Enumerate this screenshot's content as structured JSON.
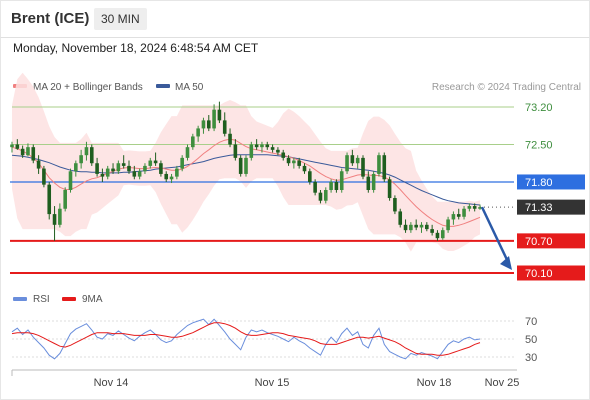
{
  "header": {
    "title": "Brent (ICE)",
    "timeframe": "30 MIN",
    "timestamp": "Monday, November 18, 2024 6:48:54 AM CET"
  },
  "legend": {
    "ma20": "MA 20 + Bollinger Bands",
    "ma50": "MA 50",
    "credit": "Research © 2024 Trading Central",
    "rsi": "RSI",
    "ma9": "9MA"
  },
  "colors": {
    "ma20": "#f08080",
    "bollinger_fill": "#fde0e0",
    "ma50": "#3a5a9a",
    "candle_up": "#3e8e3e",
    "candle_down": "#1f5e1f",
    "target_line": "#a8cf8a",
    "resistance_label": "#2e6fe0",
    "support_line": "#e51b1b",
    "last_price_bg": "#333333",
    "forecast_arrow": "#2b5aa8",
    "rsi_line": "#6a8edc",
    "rsi_ma": "#e51b1b"
  },
  "chart_data": [
    {
      "type": "candlestick",
      "title": "Brent (ICE)",
      "timeframe": "30 MIN",
      "ylim": [
        69.9,
        73.4
      ],
      "x_ticks": [
        "Nov 14",
        "Nov 15",
        "Nov 18",
        "Nov 25"
      ],
      "price_levels": [
        {
          "value": 73.2,
          "label": "73.20",
          "style": "target"
        },
        {
          "value": 72.5,
          "label": "72.50",
          "style": "target"
        },
        {
          "value": 71.8,
          "label": "71.80",
          "style": "resistance"
        },
        {
          "value": 71.33,
          "label": "71.33",
          "style": "last"
        },
        {
          "value": 70.7,
          "label": "70.70",
          "style": "support"
        },
        {
          "value": 70.1,
          "label": "70.10",
          "style": "support"
        }
      ],
      "last_price": 71.33,
      "forecast": {
        "from": 71.33,
        "to": 70.1
      },
      "ohlc": [
        [
          72.45,
          72.55,
          72.35,
          72.5
        ],
        [
          72.5,
          72.6,
          72.4,
          72.42
        ],
        [
          72.42,
          72.48,
          72.25,
          72.3
        ],
        [
          72.3,
          72.52,
          72.28,
          72.45
        ],
        [
          72.45,
          72.5,
          72.15,
          72.2
        ],
        [
          72.2,
          72.3,
          71.95,
          72.05
        ],
        [
          72.05,
          72.1,
          71.7,
          71.75
        ],
        [
          71.75,
          71.8,
          71.1,
          71.2
        ],
        [
          71.2,
          71.35,
          70.7,
          71.0
        ],
        [
          71.0,
          71.4,
          70.95,
          71.3
        ],
        [
          71.3,
          71.7,
          71.25,
          71.65
        ],
        [
          71.65,
          72.05,
          71.6,
          72.0
        ],
        [
          72.0,
          72.2,
          71.9,
          72.15
        ],
        [
          72.15,
          72.4,
          72.05,
          72.3
        ],
        [
          72.3,
          72.55,
          72.2,
          72.45
        ],
        [
          72.45,
          72.5,
          72.1,
          72.15
        ],
        [
          72.15,
          72.25,
          71.9,
          71.95
        ],
        [
          71.95,
          72.05,
          71.8,
          71.9
        ],
        [
          71.9,
          72.1,
          71.85,
          72.05
        ],
        [
          72.05,
          72.15,
          71.95,
          72.0
        ],
        [
          72.0,
          72.2,
          71.95,
          72.15
        ],
        [
          72.15,
          72.3,
          72.05,
          72.1
        ],
        [
          72.1,
          72.2,
          71.95,
          72.0
        ],
        [
          72.0,
          72.1,
          71.85,
          71.9
        ],
        [
          71.9,
          72.05,
          71.85,
          72.0
        ],
        [
          72.0,
          72.15,
          71.95,
          72.1
        ],
        [
          72.1,
          72.25,
          72.05,
          72.2
        ],
        [
          72.2,
          72.35,
          72.1,
          72.15
        ],
        [
          72.15,
          72.2,
          71.9,
          71.95
        ],
        [
          71.95,
          72.0,
          71.8,
          71.85
        ],
        [
          71.85,
          71.95,
          71.78,
          71.9
        ],
        [
          71.9,
          72.1,
          71.85,
          72.05
        ],
        [
          72.05,
          72.3,
          72.0,
          72.25
        ],
        [
          72.25,
          72.5,
          72.2,
          72.45
        ],
        [
          72.45,
          72.7,
          72.4,
          72.65
        ],
        [
          72.65,
          72.85,
          72.55,
          72.8
        ],
        [
          72.8,
          73.0,
          72.7,
          72.95
        ],
        [
          72.95,
          73.05,
          72.75,
          72.8
        ],
        [
          72.8,
          73.25,
          72.75,
          73.15
        ],
        [
          73.15,
          73.3,
          72.9,
          72.95
        ],
        [
          72.95,
          73.1,
          72.65,
          72.7
        ],
        [
          72.7,
          72.8,
          72.45,
          72.5
        ],
        [
          72.5,
          72.6,
          72.2,
          72.25
        ],
        [
          72.25,
          72.3,
          71.9,
          71.95
        ],
        [
          71.95,
          72.3,
          71.9,
          72.25
        ],
        [
          72.25,
          72.55,
          72.2,
          72.5
        ],
        [
          72.5,
          72.6,
          72.4,
          72.45
        ],
        [
          72.45,
          72.55,
          72.35,
          72.5
        ],
        [
          72.5,
          72.55,
          72.4,
          72.45
        ],
        [
          72.45,
          72.5,
          72.35,
          72.4
        ],
        [
          72.4,
          72.45,
          72.3,
          72.35
        ],
        [
          72.35,
          72.4,
          72.2,
          72.25
        ],
        [
          72.25,
          72.3,
          72.1,
          72.15
        ],
        [
          72.15,
          72.25,
          72.05,
          72.2
        ],
        [
          72.2,
          72.25,
          72.05,
          72.1
        ],
        [
          72.1,
          72.15,
          71.95,
          72.0
        ],
        [
          72.0,
          72.05,
          71.75,
          71.8
        ],
        [
          71.8,
          71.85,
          71.55,
          71.6
        ],
        [
          71.6,
          71.65,
          71.4,
          71.45
        ],
        [
          71.45,
          71.7,
          71.4,
          71.65
        ],
        [
          71.65,
          71.85,
          71.6,
          71.8
        ],
        [
          71.8,
          71.85,
          71.6,
          71.65
        ],
        [
          71.65,
          72.05,
          71.6,
          72.0
        ],
        [
          72.0,
          72.35,
          71.95,
          72.3
        ],
        [
          72.3,
          72.4,
          72.1,
          72.15
        ],
        [
          72.15,
          72.3,
          72.05,
          72.25
        ],
        [
          72.25,
          72.3,
          71.85,
          71.9
        ],
        [
          71.9,
          72.0,
          71.6,
          71.65
        ],
        [
          71.65,
          72.0,
          71.6,
          71.95
        ],
        [
          71.95,
          72.35,
          71.9,
          72.3
        ],
        [
          72.3,
          72.35,
          71.8,
          71.85
        ],
        [
          71.85,
          71.9,
          71.45,
          71.5
        ],
        [
          71.5,
          71.55,
          71.2,
          71.25
        ],
        [
          71.25,
          71.3,
          70.95,
          71.0
        ],
        [
          71.0,
          71.1,
          70.85,
          70.9
        ],
        [
          70.9,
          71.05,
          70.85,
          71.0
        ],
        [
          71.0,
          71.1,
          70.9,
          70.95
        ],
        [
          70.95,
          71.05,
          70.85,
          71.0
        ],
        [
          71.0,
          71.05,
          70.88,
          70.92
        ],
        [
          70.92,
          71.0,
          70.8,
          70.85
        ],
        [
          70.85,
          70.9,
          70.7,
          70.75
        ],
        [
          70.75,
          70.95,
          70.72,
          70.9
        ],
        [
          70.9,
          71.15,
          70.85,
          71.1
        ],
        [
          71.1,
          71.25,
          71.0,
          71.2
        ],
        [
          71.2,
          71.3,
          71.1,
          71.15
        ],
        [
          71.15,
          71.35,
          71.1,
          71.3
        ],
        [
          71.3,
          71.4,
          71.25,
          71.35
        ],
        [
          71.35,
          71.4,
          71.25,
          71.3
        ],
        [
          71.3,
          71.38,
          71.28,
          71.33
        ]
      ],
      "series": [
        {
          "name": "MA 20",
          "values": [
            72.45,
            72.42,
            72.38,
            72.32,
            72.25,
            72.15,
            72.02,
            71.88,
            71.78,
            71.7,
            71.66,
            71.66,
            71.7,
            71.76,
            71.82,
            71.86,
            71.88,
            71.92,
            71.96,
            72.0,
            72.04,
            72.06,
            72.07,
            72.06,
            72.05,
            72.05,
            72.06,
            72.07,
            72.06,
            72.04,
            72.02,
            72.02,
            72.04,
            72.09,
            72.16,
            72.24,
            72.33,
            72.4,
            72.48,
            72.54,
            72.58,
            72.6,
            72.58,
            72.52,
            72.46,
            72.42,
            72.4,
            72.38,
            72.36,
            72.34,
            72.32,
            72.3,
            72.27,
            72.24,
            72.2,
            72.15,
            72.1,
            72.03,
            71.96,
            71.9,
            71.86,
            71.83,
            71.84,
            71.87,
            71.9,
            71.93,
            71.94,
            71.93,
            71.92,
            71.92,
            71.89,
            71.84,
            71.76,
            71.66,
            71.55,
            71.44,
            71.34,
            71.25,
            71.17,
            71.1,
            71.04,
            70.99,
            70.97,
            70.97,
            70.99,
            71.02,
            71.06,
            71.1,
            71.14
          ]
        },
        {
          "name": "MA 50",
          "values": [
            72.3,
            72.29,
            72.28,
            72.26,
            72.24,
            72.22,
            72.19,
            72.16,
            72.12,
            72.08,
            72.05,
            72.02,
            72.0,
            71.99,
            71.99,
            71.98,
            71.98,
            71.97,
            71.97,
            71.97,
            71.97,
            71.98,
            71.98,
            71.99,
            72.0,
            72.01,
            72.02,
            72.04,
            72.05,
            72.06,
            72.07,
            72.08,
            72.1,
            72.12,
            72.14,
            72.16,
            72.18,
            72.21,
            72.24,
            72.26,
            72.28,
            72.3,
            72.31,
            72.31,
            72.31,
            72.31,
            72.31,
            72.31,
            72.31,
            72.3,
            72.29,
            72.28,
            72.27,
            72.25,
            72.23,
            72.21,
            72.19,
            72.17,
            72.15,
            72.13,
            72.11,
            72.09,
            72.07,
            72.06,
            72.05,
            72.04,
            72.03,
            72.02,
            72.0,
            71.98,
            71.96,
            71.93,
            71.89,
            71.84,
            71.79,
            71.74,
            71.69,
            71.64,
            71.6,
            71.56,
            71.52,
            71.48,
            71.45,
            71.43,
            71.41,
            71.4,
            71.39,
            71.38,
            71.37
          ]
        }
      ]
    },
    {
      "type": "line",
      "title": "RSI",
      "ylim": [
        20,
        80
      ],
      "y_ticks": [
        70,
        50,
        30
      ],
      "series": [
        {
          "name": "RSI",
          "values": [
            58,
            62,
            55,
            60,
            52,
            46,
            40,
            32,
            28,
            34,
            45,
            56,
            61,
            64,
            67,
            60,
            52,
            50,
            56,
            54,
            59,
            55,
            51,
            48,
            53,
            57,
            60,
            55,
            49,
            46,
            48,
            55,
            60,
            65,
            68,
            70,
            72,
            66,
            72,
            65,
            58,
            50,
            44,
            38,
            52,
            60,
            58,
            60,
            57,
            55,
            53,
            50,
            47,
            52,
            48,
            45,
            40,
            36,
            32,
            44,
            52,
            46,
            56,
            62,
            54,
            58,
            44,
            40,
            54,
            62,
            44,
            36,
            33,
            30,
            28,
            34,
            32,
            35,
            33,
            31,
            28,
            36,
            44,
            48,
            46,
            50,
            52,
            49,
            50
          ]
        },
        {
          "name": "9MA",
          "values": [
            56,
            57,
            57,
            57,
            56,
            54,
            51,
            48,
            45,
            42,
            41,
            43,
            46,
            49,
            52,
            55,
            57,
            57,
            57,
            56,
            56,
            56,
            55,
            54,
            54,
            54,
            55,
            55,
            54,
            53,
            52,
            52,
            53,
            55,
            57,
            60,
            63,
            66,
            68,
            68,
            67,
            65,
            62,
            58,
            55,
            54,
            54,
            55,
            56,
            57,
            57,
            56,
            54,
            53,
            52,
            51,
            50,
            48,
            45,
            44,
            44,
            44,
            46,
            48,
            50,
            52,
            52,
            51,
            52,
            53,
            51,
            49,
            47,
            44,
            40,
            37,
            34,
            33,
            33,
            33,
            32,
            32,
            33,
            35,
            37,
            39,
            41,
            44,
            46
          ]
        }
      ]
    }
  ]
}
